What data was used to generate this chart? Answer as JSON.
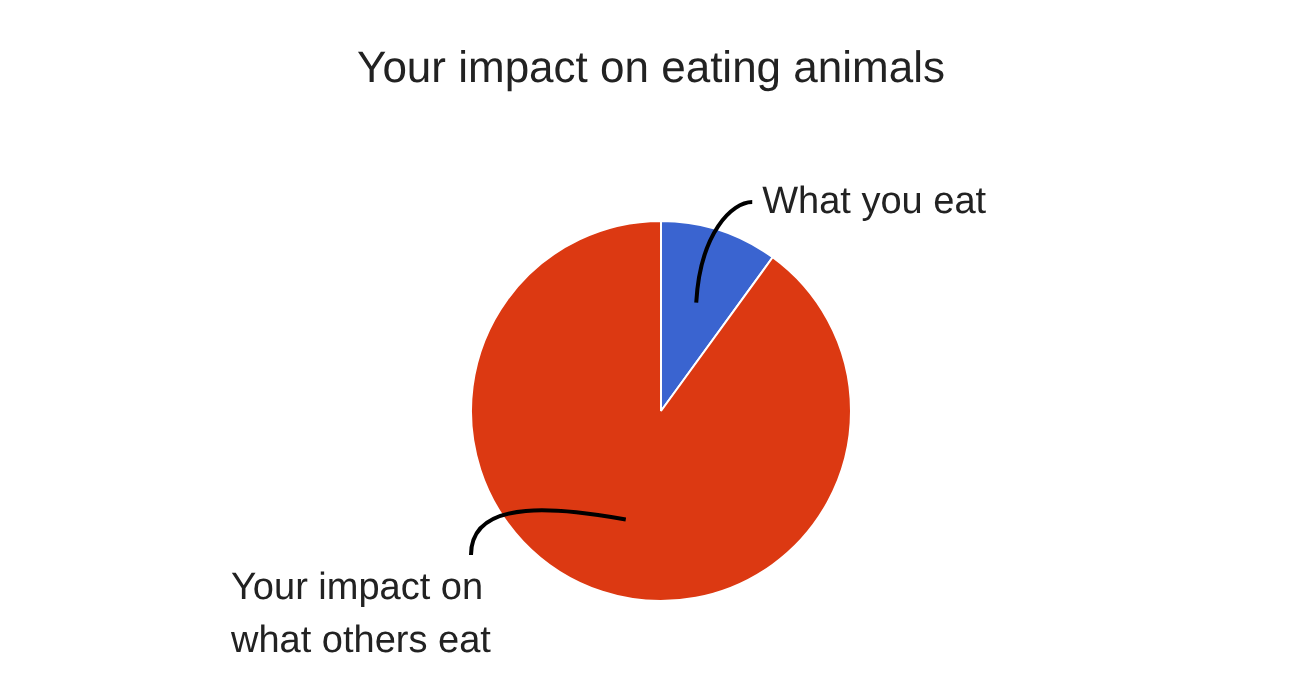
{
  "chart_data": {
    "type": "pie",
    "title": "Your impact on eating animals",
    "categories": [
      "What you eat",
      "Your impact on what others eat"
    ],
    "values": [
      10,
      90
    ],
    "colors": [
      "#3a64d0",
      "#dc3912"
    ]
  }
}
